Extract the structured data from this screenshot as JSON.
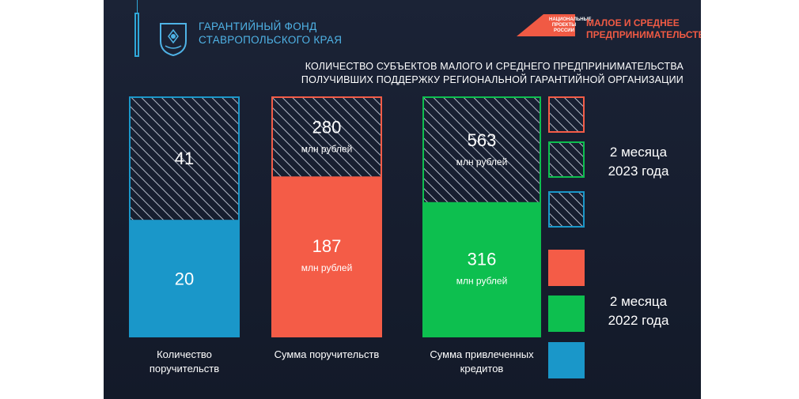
{
  "header": {
    "org_line1": "ГАРАНТИЙНЫЙ ФОНД",
    "org_line2": "СТАВРОПОЛЬСКОГО КРАЯ",
    "np_text": "НАЦИОНАЛЬНЫЕ ПРОЕКТЫ РОССИИ",
    "msp_line1": "МАЛОЕ И СРЕДНЕЕ",
    "msp_line2": "ПРЕДПРИНИМАТЕЛЬСТВО"
  },
  "chart_data": {
    "type": "bar",
    "title_line1": "КОЛИЧЕСТВО СУБЪЕКТОВ МАЛОГО И СРЕДНЕГО ПРЕДПРИНИМАТЕЛЬСТВА",
    "title_line2": "ПОЛУЧИВШИХ ПОДДЕРЖКУ РЕГИОНАЛЬНОЙ ГАРАНТИЙНОЙ ОРГАНИЗАЦИИ",
    "categories": [
      {
        "label_line1": "Количество",
        "label_line2": "поручительств",
        "color": "#1a97c9",
        "y2022": 20,
        "y2023": 41,
        "unit": ""
      },
      {
        "label_line1": "Сумма поручительств",
        "label_line2": "",
        "color": "#f45c47",
        "y2022": 187,
        "y2023": 280,
        "unit": "млн рублей"
      },
      {
        "label_line1": "Сумма привлеченных",
        "label_line2": "кредитов",
        "color": "#0dbf4f",
        "y2022": 316,
        "y2023": 563,
        "unit": "млн рублей"
      }
    ],
    "series": [
      {
        "name_line1": "2 месяца",
        "name_line2": "2023 года",
        "style": "hatched"
      },
      {
        "name_line1": "2 месяца",
        "name_line2": "2022 года",
        "style": "solid"
      }
    ]
  }
}
